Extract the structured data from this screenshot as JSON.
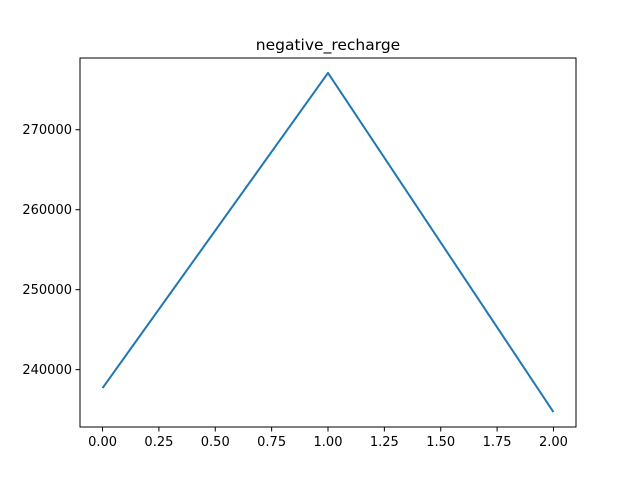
{
  "chart_data": {
    "type": "line",
    "title": "negative_recharge",
    "xlabel": "",
    "ylabel": "",
    "x": [
      0,
      1,
      2
    ],
    "series": [
      {
        "values": [
          237700,
          277100,
          234700
        ],
        "color": "#1f77b4"
      }
    ],
    "xlim": [
      -0.1,
      2.1
    ],
    "ylim": [
      232830,
      278970
    ],
    "xticks": [
      0.0,
      0.25,
      0.5,
      0.75,
      1.0,
      1.25,
      1.5,
      1.75,
      2.0
    ],
    "xtick_labels": [
      "0.00",
      "0.25",
      "0.50",
      "0.75",
      "1.00",
      "1.25",
      "1.50",
      "1.75",
      "2.00"
    ],
    "yticks": [
      240000,
      250000,
      260000,
      270000
    ],
    "ytick_labels": [
      "240000",
      "250000",
      "260000",
      "270000"
    ],
    "grid": false,
    "legend": "none"
  }
}
